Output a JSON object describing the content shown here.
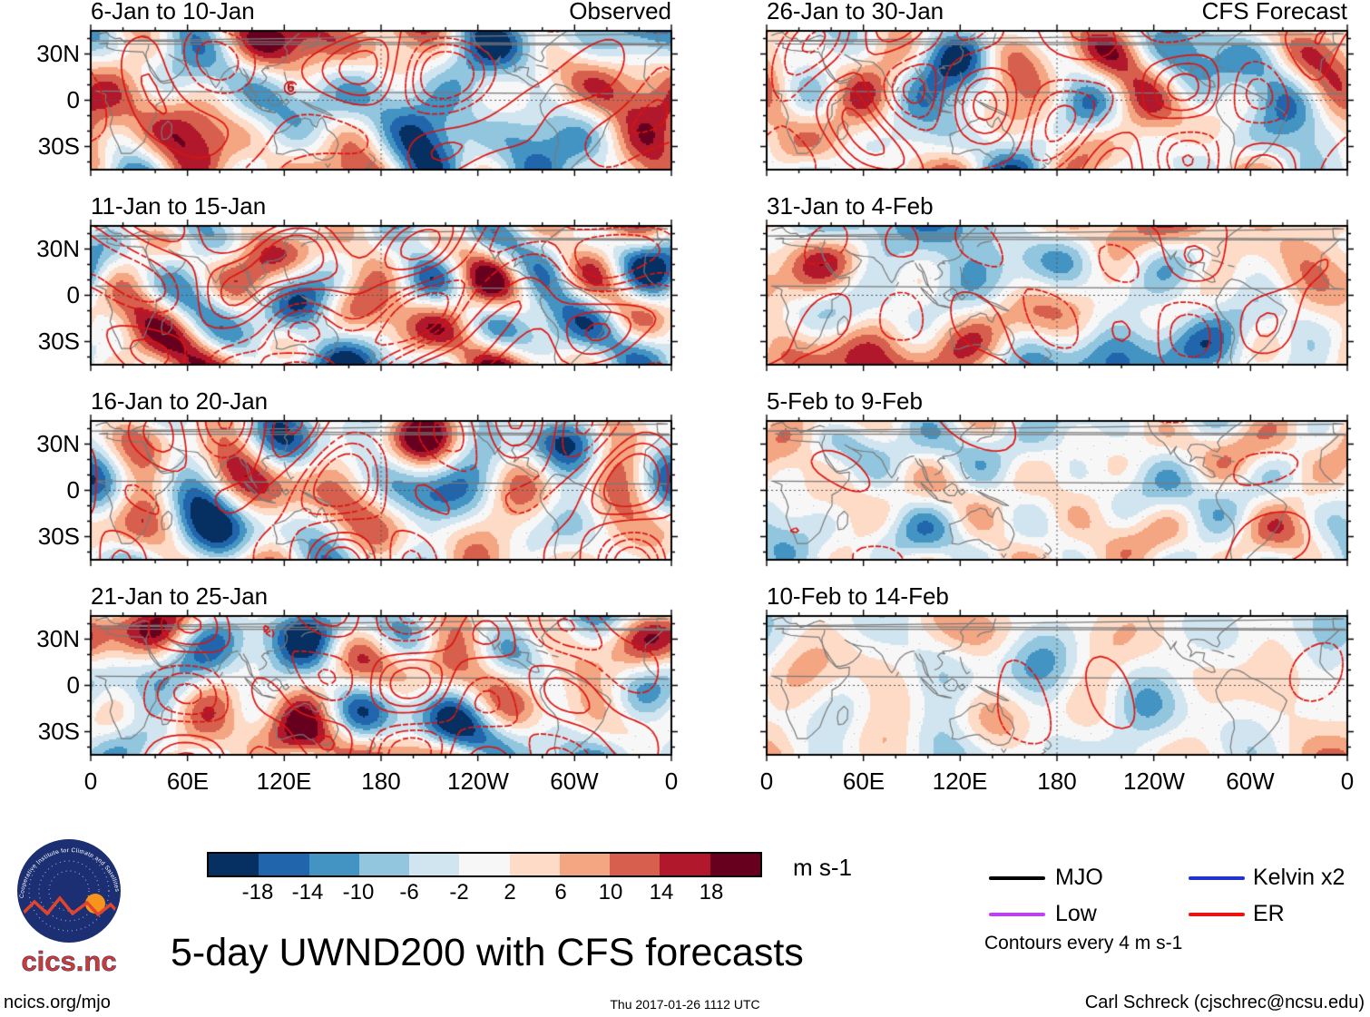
{
  "chart_data": {
    "type": "heatmap",
    "title": "5-day UWND200 with CFS forecasts",
    "columns": [
      {
        "corner_label": "Observed",
        "panels": [
          "6-Jan to 10-Jan",
          "11-Jan to 15-Jan",
          "16-Jan to 20-Jan",
          "21-Jan to 25-Jan"
        ]
      },
      {
        "corner_label": "CFS Forecast",
        "panels": [
          "26-Jan to 30-Jan",
          "31-Jan to 4-Feb",
          "5-Feb to 9-Feb",
          "10-Feb to 14-Feb"
        ]
      }
    ],
    "axes": {
      "lon_ticks": [
        "0",
        "60E",
        "120E",
        "180",
        "120W",
        "60W",
        "0"
      ],
      "lat_ticks": [
        "30N",
        "0",
        "30S"
      ],
      "lon_range": [
        0,
        360
      ],
      "lat_range": [
        -45,
        45
      ],
      "reference_lines": "dashed equator and dateline"
    },
    "colorbar": {
      "units": "m s-1",
      "tick_labels": [
        "-18",
        "-14",
        "-10",
        "-6",
        "-2",
        "2",
        "6",
        "10",
        "14",
        "18"
      ],
      "colors": [
        "#053061",
        "#2166ac",
        "#4393c3",
        "#92c5de",
        "#d1e5f0",
        "#f7f7f7",
        "#fddbc7",
        "#f4a582",
        "#d6604d",
        "#b2182b",
        "#67001f"
      ]
    },
    "legend": {
      "items": [
        {
          "label": "MJO",
          "color": "#000000"
        },
        {
          "label": "Kelvin x2",
          "color": "#2233cc"
        },
        {
          "label": "Low",
          "color": "#bb44ee"
        },
        {
          "label": "ER",
          "color": "#ee1111"
        }
      ],
      "note": "Contours every 4 m s-1"
    },
    "markers": [
      {
        "panel": 0,
        "label": "6",
        "lon": 124,
        "lat": 8,
        "color": "#cc0000"
      }
    ]
  },
  "logo": {
    "brand": "cics.nc",
    "ring_text": "Cooperative Institute for Climate and Satellites"
  },
  "footer": {
    "left": "ncics.org/mjo",
    "center": "Thu 2017-01-26 1112 UTC",
    "right": "Carl Schreck (cjschrec@ncsu.edu)"
  }
}
